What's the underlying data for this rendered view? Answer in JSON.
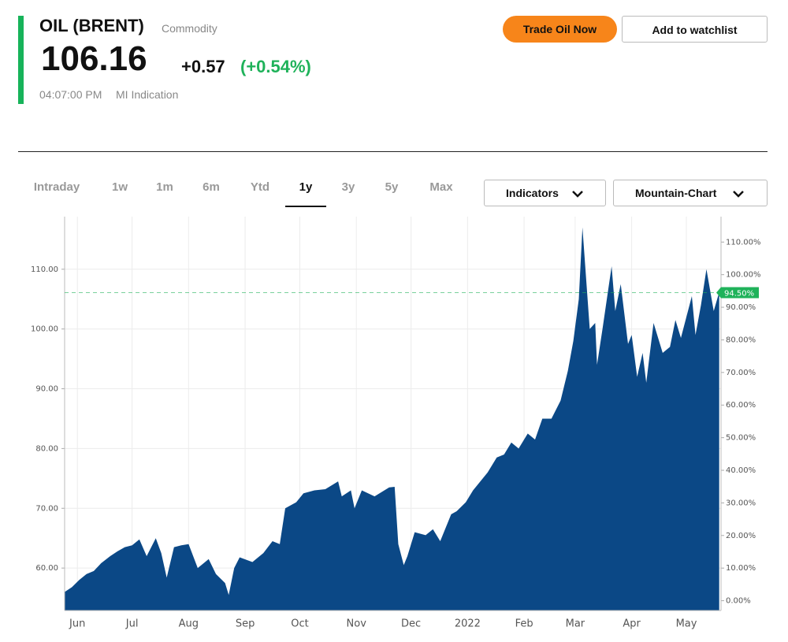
{
  "header": {
    "title": "OIL (BRENT)",
    "subtitle": "Commodity",
    "price": "106.16",
    "change": "+0.57",
    "change_pct": "(+0.54%)",
    "time": "04:07:00 PM",
    "source": "MI Indication"
  },
  "buttons": [
    "Trade Oil Now",
    "Add to watchlist"
  ],
  "tabs": [
    {
      "label": "Intraday",
      "selected": false
    },
    {
      "label": "1w",
      "selected": false
    },
    {
      "label": "1m",
      "selected": false
    },
    {
      "label": "6m",
      "selected": false
    },
    {
      "label": "Ytd",
      "selected": false
    },
    {
      "label": "1y",
      "selected": true
    },
    {
      "label": "3y",
      "selected": false
    },
    {
      "label": "5y",
      "selected": false
    },
    {
      "label": "Max",
      "selected": false
    }
  ],
  "dropdowns": [
    "Indicators",
    "Mountain-Chart"
  ],
  "chart_data": {
    "type": "area",
    "color": "#0b4886",
    "grid": true,
    "x": [
      0,
      4,
      8,
      12,
      16,
      20,
      25,
      29,
      33,
      37,
      41,
      45,
      50,
      53,
      56,
      60,
      64,
      68,
      73,
      79,
      83,
      88,
      90,
      93,
      96,
      103,
      109,
      114,
      118,
      121,
      127,
      131,
      137,
      143,
      150,
      152,
      157,
      159,
      163,
      170,
      178,
      181,
      183,
      186,
      188,
      192,
      198,
      202,
      206,
      212,
      215,
      220,
      224,
      228,
      232,
      237,
      241,
      245,
      249,
      254,
      258,
      262,
      267,
      272,
      276,
      279,
      282,
      284,
      288,
      291,
      292,
      295,
      300,
      302,
      305,
      309,
      311,
      314,
      317,
      319,
      323,
      328,
      332,
      335,
      338,
      344,
      346,
      349,
      352,
      356,
      359
    ],
    "series": [
      {
        "name": "OIL (BRENT)",
        "values": [
          56.0,
          56.8,
          58.0,
          59.0,
          59.5,
          60.8,
          62.0,
          62.8,
          63.5,
          63.8,
          64.8,
          62.0,
          65.0,
          62.5,
          58.4,
          63.5,
          63.8,
          64.0,
          60.0,
          61.5,
          59.0,
          57.5,
          55.5,
          60.0,
          61.8,
          61.0,
          62.5,
          64.5,
          64.0,
          70.0,
          71.0,
          72.5,
          73.0,
          73.2,
          74.5,
          72.0,
          73.0,
          70.0,
          73.0,
          72.0,
          73.5,
          73.6,
          64.0,
          60.5,
          62.0,
          66.0,
          65.5,
          66.5,
          64.5,
          69.0,
          69.5,
          71.0,
          73.0,
          74.5,
          76.0,
          78.5,
          79.0,
          81.0,
          80.0,
          82.5,
          81.5,
          85.0,
          85.0,
          88.0,
          93.0,
          98.0,
          105.0,
          117.0,
          100.0,
          101.0,
          94.0,
          100.0,
          110.5,
          103.0,
          107.5,
          97.5,
          99.0,
          92.0,
          96.0,
          91.0,
          101.0,
          96.0,
          97.0,
          101.5,
          98.5,
          105.5,
          99.0,
          104.0,
          110.0,
          103.0,
          106.16
        ]
      }
    ],
    "xlim": [
      0,
      360
    ],
    "xticks": [
      {
        "value": 7,
        "label": "Jun"
      },
      {
        "value": 37,
        "label": "Jul"
      },
      {
        "value": 68,
        "label": "Aug"
      },
      {
        "value": 99,
        "label": "Sep"
      },
      {
        "value": 129,
        "label": "Oct"
      },
      {
        "value": 160,
        "label": "Nov"
      },
      {
        "value": 190,
        "label": "Dec"
      },
      {
        "value": 221,
        "label": "2022"
      },
      {
        "value": 252,
        "label": "Feb"
      },
      {
        "value": 280,
        "label": "Mar"
      },
      {
        "value": 311,
        "label": "Apr"
      },
      {
        "value": 341,
        "label": "May"
      }
    ],
    "ylim": [
      52.9,
      118.8
    ],
    "yticks": [
      {
        "value": 60,
        "label": "60.00"
      },
      {
        "value": 70,
        "label": "70.00"
      },
      {
        "value": 80,
        "label": "80.00"
      },
      {
        "value": 90,
        "label": "90.00"
      },
      {
        "value": 100,
        "label": "100.00"
      },
      {
        "value": 110,
        "label": "110.00"
      }
    ],
    "y2lim": [
      -3.0,
      117.8
    ],
    "y2ticks": [
      {
        "value": 0,
        "label": "0.00%"
      },
      {
        "value": 10,
        "label": "10.00%"
      },
      {
        "value": 20,
        "label": "20.00%"
      },
      {
        "value": 30,
        "label": "30.00%"
      },
      {
        "value": 40,
        "label": "40.00%"
      },
      {
        "value": 50,
        "label": "50.00%"
      },
      {
        "value": 60,
        "label": "60.00%"
      },
      {
        "value": 70,
        "label": "70.00%"
      },
      {
        "value": 80,
        "label": "80.00%"
      },
      {
        "value": 90,
        "label": "90.00%"
      },
      {
        "value": 100,
        "label": "100.00%"
      },
      {
        "value": 110,
        "label": "110.00%"
      }
    ],
    "current_marker": {
      "value": 94.5,
      "label": "94.50%",
      "axis": "y2",
      "color": "#1fb25a"
    }
  }
}
